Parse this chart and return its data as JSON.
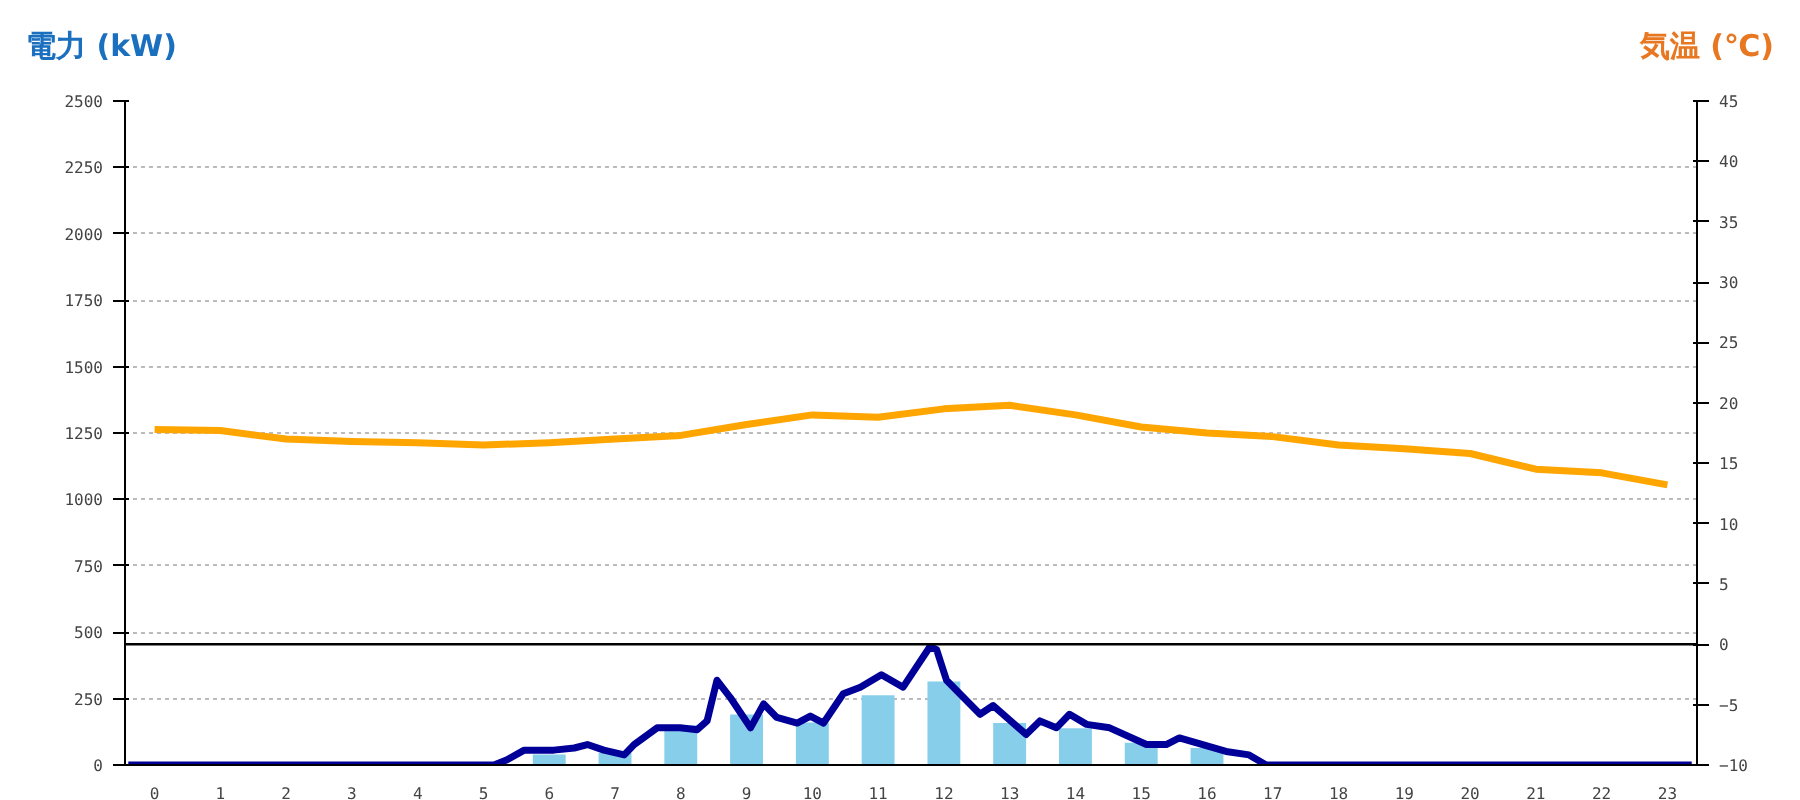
{
  "chart_data": {
    "type": "bar",
    "ylabel": "電力 (kW)",
    "y2label": "気温 (℃)",
    "x": [
      0,
      1,
      2,
      3,
      4,
      5,
      6,
      7,
      8,
      9,
      10,
      11,
      12,
      13,
      14,
      15,
      16,
      17,
      18,
      19,
      20,
      21,
      22,
      23
    ],
    "xlim": [
      -0.45,
      23.45
    ],
    "xticks": [
      0,
      1,
      2,
      3,
      4,
      5,
      6,
      7,
      8,
      9,
      10,
      11,
      12,
      13,
      14,
      15,
      16,
      17,
      18,
      19,
      20,
      21,
      22,
      23
    ],
    "series": [
      {
        "color": "#87ceeb",
        "values": [
          0,
          0,
          0,
          0,
          0,
          0,
          40,
          45,
          150,
          190,
          160,
          263,
          314,
          158,
          138,
          84,
          64,
          0,
          0,
          0,
          0,
          0,
          0,
          0
        ]
      },
      {
        "type": "line",
        "color": "#000099",
        "x": [
          -0.4,
          5.16,
          5.36,
          5.62,
          6.07,
          6.38,
          6.58,
          6.83,
          7.14,
          7.29,
          7.64,
          7.99,
          8.25,
          8.4,
          8.55,
          8.75,
          9.06,
          9.26,
          9.46,
          9.77,
          9.97,
          10.17,
          10.47,
          10.73,
          11.05,
          11.38,
          11.79,
          11.89,
          12.04,
          12.55,
          12.75,
          13.25,
          13.46,
          13.71,
          13.91,
          14.17,
          14.52,
          15.08,
          15.38,
          15.58,
          16.29,
          16.64,
          16.9,
          23.37
        ],
        "values": [
          0,
          0,
          20,
          56,
          56,
          64,
          77,
          56,
          38,
          77,
          140,
          140,
          133,
          166,
          319,
          255,
          140,
          230,
          179,
          158,
          184,
          158,
          268,
          293,
          340,
          293,
          446,
          434,
          319,
          191,
          224,
          115,
          166,
          140,
          191,
          153,
          140,
          77,
          77,
          102,
          51,
          38,
          0,
          0
        ]
      },
      {
        "type": "line",
        "axis": "y2",
        "color": "#ffa500",
        "values": [
          17.8,
          17.7,
          17.0,
          16.8,
          16.7,
          16.5,
          16.7,
          17.0,
          17.3,
          18.2,
          19.0,
          18.8,
          19.5,
          19.8,
          19.0,
          18.0,
          17.5,
          17.2,
          16.5,
          16.2,
          15.8,
          14.5,
          14.2,
          13.2
        ]
      }
    ],
    "ylim": [
      0,
      2500
    ],
    "yticks": [
      0,
      250,
      500,
      750,
      1000,
      1250,
      1500,
      1750,
      2000,
      2250,
      2500
    ],
    "y2lim": [
      -10,
      45
    ],
    "y2ticks": [
      -10,
      -5,
      0,
      5,
      10,
      15,
      20,
      25,
      30,
      35,
      40,
      45
    ],
    "ref_lines": [
      {
        "axis": "y2",
        "value": 0,
        "color": "#000000"
      }
    ],
    "grid": "y"
  }
}
